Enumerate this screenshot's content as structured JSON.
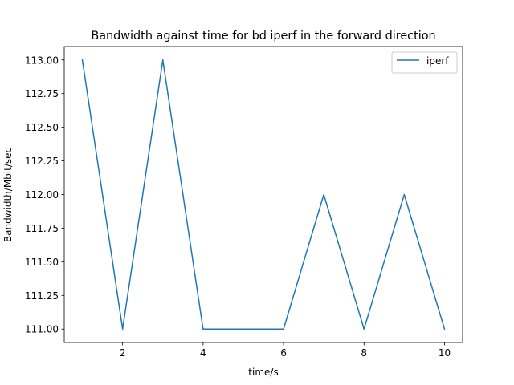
{
  "chart_data": {
    "type": "line",
    "title": "Bandwidth against time for bd iperf in the forward direction",
    "xlabel": "time/s",
    "ylabel": "Bandwidth/Mbit/sec",
    "x": [
      1,
      2,
      3,
      4,
      5,
      6,
      7,
      8,
      9,
      10
    ],
    "series": [
      {
        "name": "iperf",
        "values": [
          113.0,
          111.0,
          113.0,
          111.0,
          111.0,
          111.0,
          112.0,
          111.0,
          112.0,
          111.0
        ]
      }
    ],
    "xlim": [
      0.55,
      10.45
    ],
    "ylim": [
      110.9,
      113.1
    ],
    "xticks": [
      2,
      4,
      6,
      8,
      10
    ],
    "xtick_labels": [
      "2",
      "4",
      "6",
      "8",
      "10"
    ],
    "yticks": [
      111.0,
      111.25,
      111.5,
      111.75,
      112.0,
      112.25,
      112.5,
      112.75,
      113.0
    ],
    "ytick_labels": [
      "111.00",
      "111.25",
      "111.50",
      "111.75",
      "112.00",
      "112.25",
      "112.50",
      "112.75",
      "113.00"
    ],
    "grid": false,
    "legend_position": "upper right",
    "colors": {
      "series": "#1f77b4",
      "axes": "#000000",
      "background": "#ffffff"
    }
  }
}
